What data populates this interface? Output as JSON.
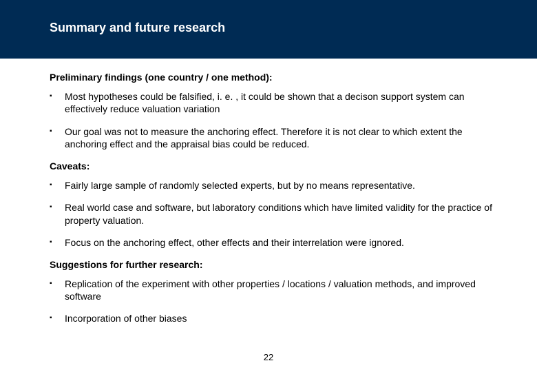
{
  "title": "Summary and future research",
  "section1": {
    "heading": "Preliminary findings (one country / one method):",
    "items": [
      "Most hypotheses could be falsified, i. e. , it could be shown that a decison support system can effectively reduce valuation variation",
      "Our goal was not to measure the anchoring effect. Therefore it is not clear to which extent the anchoring effect and the appraisal bias could be reduced."
    ]
  },
  "section2": {
    "heading": "Caveats:",
    "items": [
      "Fairly large sample of randomly selected experts, but by no means representative.",
      "Real world case and software, but laboratory conditions which have limited validity for the practice of property valuation.",
      "Focus on the anchoring effect, other effects and their interrelation were ignored."
    ]
  },
  "section3": {
    "heading": "Suggestions for further research:",
    "items": [
      "Replication of the experiment with other properties / locations / valuation methods, and improved software",
      "Incorporation of other biases"
    ]
  },
  "page_number": "22",
  "colors": {
    "title_bg": "#002b54",
    "title_fg": "#ffffff",
    "body_fg": "#000000",
    "page_bg": "#ffffff"
  }
}
